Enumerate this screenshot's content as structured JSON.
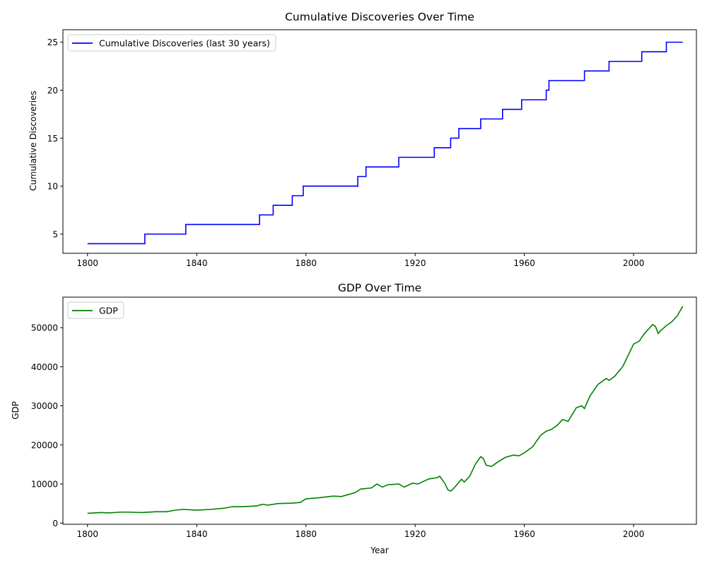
{
  "chart_data": [
    {
      "type": "line",
      "title": "Cumulative Discoveries Over Time",
      "xlabel": "",
      "ylabel": "Cumulative Discoveries",
      "xlim": [
        1791,
        2023
      ],
      "ylim": [
        3,
        26.3
      ],
      "xticks": [
        1800,
        1840,
        1880,
        1920,
        1960,
        2000
      ],
      "yticks": [
        5,
        10,
        15,
        20,
        25
      ],
      "legend_position": "top-left",
      "grid": false,
      "step": true,
      "series": [
        {
          "name": "Cumulative Discoveries (last 30 years)",
          "color": "#0000ff",
          "x": [
            1800,
            1821,
            1836,
            1863,
            1868,
            1875,
            1879,
            1899,
            1902,
            1914,
            1927,
            1933,
            1936,
            1944,
            1952,
            1959,
            1968,
            1969,
            1982,
            1991,
            2003,
            2012,
            2018
          ],
          "y": [
            4,
            5,
            6,
            7,
            8,
            9,
            10,
            11,
            12,
            13,
            14,
            15,
            16,
            17,
            18,
            19,
            20,
            21,
            22,
            23,
            24,
            25,
            25
          ]
        }
      ]
    },
    {
      "type": "line",
      "title": "GDP Over Time",
      "xlabel": "Year",
      "ylabel": "GDP",
      "xlim": [
        1791,
        2023
      ],
      "ylim": [
        -300,
        57800
      ],
      "xticks": [
        1800,
        1840,
        1880,
        1920,
        1960,
        2000
      ],
      "yticks": [
        0,
        10000,
        20000,
        30000,
        40000,
        50000
      ],
      "legend_position": "top-left",
      "grid": false,
      "series": [
        {
          "name": "GDP",
          "color": "#008000",
          "x": [
            1800,
            1805,
            1808,
            1812,
            1815,
            1820,
            1825,
            1829,
            1832,
            1835,
            1840,
            1845,
            1850,
            1853,
            1857,
            1862,
            1864,
            1866,
            1870,
            1875,
            1878,
            1880,
            1885,
            1890,
            1893,
            1895,
            1898,
            1900,
            1904,
            1906,
            1908,
            1910,
            1914,
            1916,
            1919,
            1921,
            1925,
            1928,
            1929,
            1931,
            1932,
            1933,
            1934,
            1937,
            1938,
            1940,
            1942,
            1944,
            1945,
            1946,
            1948,
            1950,
            1953,
            1956,
            1958,
            1960,
            1963,
            1966,
            1968,
            1970,
            1972,
            1974,
            1976,
            1979,
            1981,
            1982,
            1984,
            1987,
            1990,
            1991,
            1993,
            1996,
            2000,
            2002,
            2004,
            2007,
            2008,
            2009,
            2010,
            2012,
            2014,
            2016,
            2018
          ],
          "y": [
            2500,
            2700,
            2600,
            2800,
            2800,
            2700,
            2900,
            2900,
            3300,
            3500,
            3300,
            3500,
            3800,
            4200,
            4200,
            4400,
            4800,
            4600,
            5000,
            5100,
            5300,
            6200,
            6500,
            6900,
            6800,
            7200,
            7800,
            8700,
            9000,
            10000,
            9200,
            9800,
            10000,
            9200,
            10200,
            10000,
            11300,
            11600,
            12000,
            10000,
            8500,
            8200,
            8800,
            11200,
            10500,
            12000,
            15000,
            17000,
            16500,
            14800,
            14500,
            15500,
            16800,
            17400,
            17200,
            18000,
            19500,
            22500,
            23500,
            24000,
            25000,
            26500,
            26000,
            29500,
            30000,
            29300,
            32500,
            35500,
            37000,
            36500,
            37500,
            40000,
            45800,
            46500,
            48500,
            50800,
            50300,
            48500,
            49300,
            50500,
            51500,
            53000,
            55500
          ]
        }
      ]
    }
  ]
}
